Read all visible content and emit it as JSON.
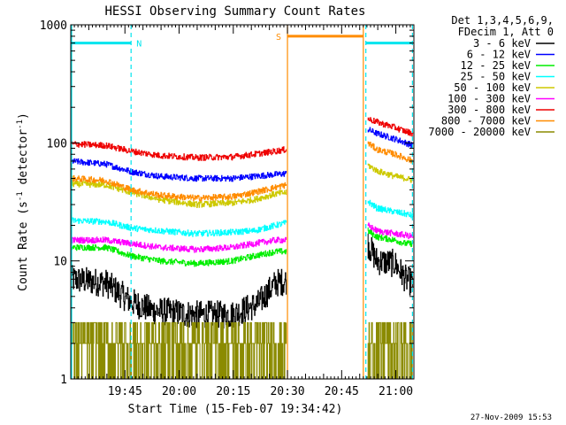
{
  "chart_data": {
    "type": "line",
    "title": "HESSI Observing Summary Count Rates",
    "xlabel": "Start Time (15-Feb-07 19:34:42)",
    "ylabel": "Count Rate (s⁻¹ detector⁻¹)",
    "ylabel_parts": {
      "base": "Count Rate (s",
      "sup1": "-1",
      "mid": " detector",
      "sup2": "-1",
      "end": ")"
    },
    "yscale": "log",
    "ylim": [
      1,
      1000
    ],
    "xlim_minutes": [
      -4.7,
      90.3
    ],
    "x_tick_labels": [
      "19:45",
      "20:00",
      "20:15",
      "20:30",
      "20:45",
      "21:00"
    ],
    "x_tick_minutes": [
      10.3,
      25.3,
      40.3,
      55.3,
      70.3,
      85.3
    ],
    "y_tick_labels": [
      "1",
      "10",
      "100",
      "1000"
    ],
    "y_tick_values": [
      1,
      10,
      100,
      1000
    ],
    "legend_header": [
      "Det 1,3,4,5,6,9,",
      "FDecim 1, Att 0"
    ],
    "legend_placement": "right",
    "timestamp": "27-Nov-2009 15:53",
    "data_gaps_minutes": [
      [
        55.3,
        77.0
      ]
    ],
    "intervals": [
      {
        "label": "",
        "flag": "night",
        "start": -4.7,
        "end": 12.0,
        "level": 700,
        "color": "#00e5ee"
      },
      {
        "label": "N",
        "flag": "night-boundary",
        "start": 12.0,
        "end": 12.0,
        "level": 700,
        "color": "#00e5ee"
      },
      {
        "label": "S",
        "flag": "saa",
        "start": 55.3,
        "end": 76.3,
        "level": 800,
        "color": "#ff8c00"
      },
      {
        "label": "",
        "flag": "night",
        "start": 77.0,
        "end": 90.0,
        "level": 700,
        "color": "#00e5ee"
      }
    ],
    "series": [
      {
        "name": "3 - 6 keV",
        "color": "#000000",
        "segments": [
          [
            [
              -4.7,
              7
            ],
            [
              5,
              6.5
            ],
            [
              12,
              4.5
            ],
            [
              18,
              3.8
            ],
            [
              30,
              3.5
            ],
            [
              40,
              3.5
            ],
            [
              47,
              4.3
            ],
            [
              52,
              6.5
            ],
            [
              55,
              6.8
            ]
          ],
          [
            [
              77.5,
              14
            ],
            [
              80,
              10
            ],
            [
              85,
              9.5
            ],
            [
              88,
              7
            ],
            [
              90,
              6.5
            ]
          ]
        ]
      },
      {
        "name": "6 - 12 keV",
        "color": "#0000ff",
        "segments": [
          [
            [
              -4.7,
              70
            ],
            [
              5,
              66
            ],
            [
              12,
              57
            ],
            [
              20,
              52
            ],
            [
              30,
              50
            ],
            [
              40,
              50
            ],
            [
              46,
              52
            ],
            [
              52,
              54
            ],
            [
              55,
              55
            ]
          ],
          [
            [
              77.5,
              130
            ],
            [
              80,
              120
            ],
            [
              85,
              108
            ],
            [
              88,
              100
            ],
            [
              90,
              95
            ]
          ]
        ]
      },
      {
        "name": "12 - 25 keV",
        "color": "#00ee00",
        "segments": [
          [
            [
              -4.7,
              13
            ],
            [
              5,
              13
            ],
            [
              12,
              11
            ],
            [
              20,
              10
            ],
            [
              30,
              9.5
            ],
            [
              40,
              10
            ],
            [
              46,
              11
            ],
            [
              52,
              12
            ],
            [
              55,
              12
            ]
          ],
          [
            [
              77.5,
              18
            ],
            [
              80,
              16
            ],
            [
              85,
              15
            ],
            [
              88,
              14
            ],
            [
              90,
              14
            ]
          ]
        ]
      },
      {
        "name": "25 - 50 keV",
        "color": "#00ffff",
        "segments": [
          [
            [
              -4.7,
              22
            ],
            [
              5,
              21.5
            ],
            [
              12,
              19
            ],
            [
              20,
              18
            ],
            [
              30,
              17
            ],
            [
              40,
              17.5
            ],
            [
              46,
              18
            ],
            [
              52,
              20
            ],
            [
              55,
              21
            ]
          ],
          [
            [
              77.5,
              32
            ],
            [
              80,
              28
            ],
            [
              85,
              26
            ],
            [
              88,
              25
            ],
            [
              90,
              24
            ]
          ]
        ]
      },
      {
        "name": "50 - 100 keV",
        "color": "#cdc900",
        "segments": [
          [
            [
              -4.7,
              45
            ],
            [
              5,
              44
            ],
            [
              12,
              38
            ],
            [
              20,
              33
            ],
            [
              30,
              30
            ],
            [
              40,
              31
            ],
            [
              46,
              33
            ],
            [
              52,
              37
            ],
            [
              55,
              38
            ]
          ],
          [
            [
              77.5,
              65
            ],
            [
              80,
              58
            ],
            [
              85,
              52
            ],
            [
              88,
              50
            ],
            [
              90,
              48
            ]
          ]
        ]
      },
      {
        "name": "100 - 300 keV",
        "color": "#ff00ff",
        "segments": [
          [
            [
              -4.7,
              15
            ],
            [
              5,
              15
            ],
            [
              12,
              14
            ],
            [
              20,
              13
            ],
            [
              30,
              12.5
            ],
            [
              40,
              13
            ],
            [
              46,
              14
            ],
            [
              52,
              15
            ],
            [
              55,
              15
            ]
          ],
          [
            [
              77.5,
              20
            ],
            [
              80,
              18
            ],
            [
              85,
              17
            ],
            [
              88,
              16.5
            ],
            [
              90,
              16
            ]
          ]
        ]
      },
      {
        "name": "300 - 800 keV",
        "color": "#ee0000",
        "segments": [
          [
            [
              -4.7,
              98
            ],
            [
              5,
              95
            ],
            [
              12,
              85
            ],
            [
              20,
              78
            ],
            [
              30,
              75
            ],
            [
              40,
              76
            ],
            [
              46,
              80
            ],
            [
              52,
              85
            ],
            [
              55,
              88
            ]
          ],
          [
            [
              77.5,
              160
            ],
            [
              80,
              150
            ],
            [
              85,
              135
            ],
            [
              88,
              125
            ],
            [
              90,
              120
            ]
          ]
        ]
      },
      {
        "name": "800 - 7000 keV",
        "color": "#ff8c00",
        "segments": [
          [
            [
              -4.7,
              50
            ],
            [
              5,
              48
            ],
            [
              12,
              40
            ],
            [
              20,
              36
            ],
            [
              30,
              34
            ],
            [
              40,
              35
            ],
            [
              46,
              38
            ],
            [
              52,
              42
            ],
            [
              55,
              44
            ]
          ],
          [
            [
              77.5,
              100
            ],
            [
              80,
              88
            ],
            [
              85,
              80
            ],
            [
              88,
              74
            ],
            [
              90,
              70
            ]
          ]
        ]
      },
      {
        "name": "7000 - 20000 keV",
        "color": "#8b8b00",
        "segments": [
          [
            [
              -4.7,
              3
            ],
            [
              5,
              2
            ],
            [
              12,
              1.5
            ],
            [
              20,
              1.5
            ],
            [
              30,
              1.5
            ],
            [
              40,
              1.7
            ],
            [
              46,
              2
            ],
            [
              52,
              2.5
            ],
            [
              55,
              3
            ]
          ],
          [
            [
              77.5,
              1.5
            ],
            [
              80,
              1.5
            ],
            [
              85,
              2
            ],
            [
              88,
              1.5
            ],
            [
              90,
              1.5
            ]
          ]
        ]
      }
    ]
  }
}
